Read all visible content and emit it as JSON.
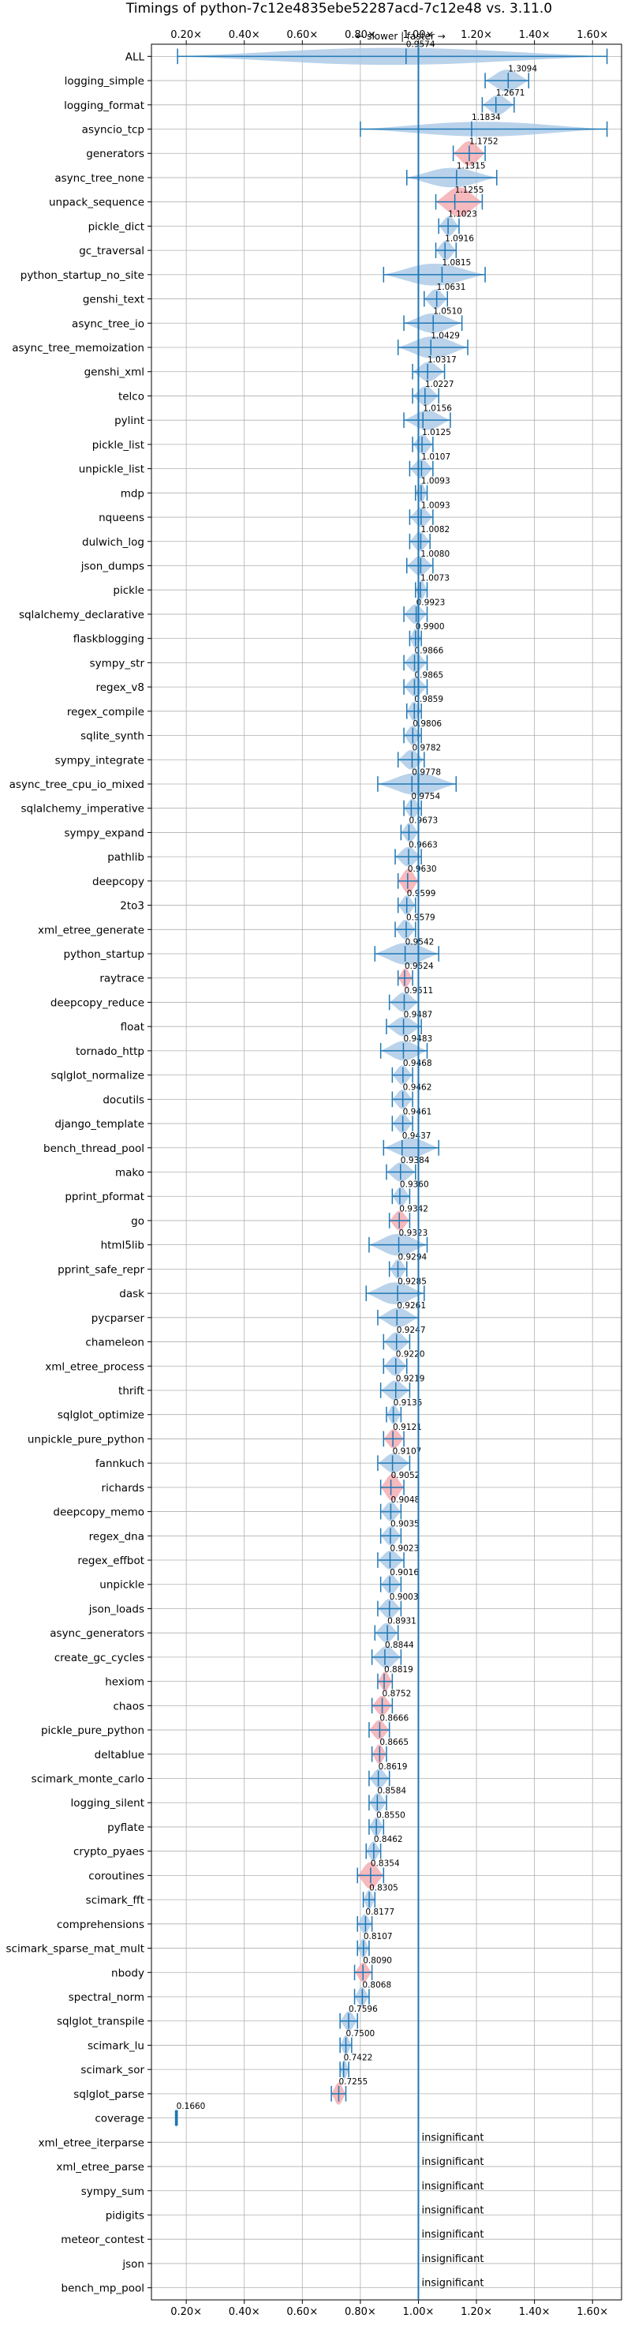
{
  "chart_data": {
    "type": "violin",
    "title": "Timings of python-7c12e4835ebe52287acd-7c12e48 vs. 3.11.0",
    "direction_label": "← slower | faster →",
    "xlim": [
      0.08,
      1.7
    ],
    "x_ticks": [
      0.2,
      0.4,
      0.6,
      0.8,
      1.0,
      1.2,
      1.4,
      1.6
    ],
    "x_tick_labels": [
      "0.20×",
      "0.40×",
      "0.60×",
      "0.80×",
      "1.00×",
      "1.20×",
      "1.40×",
      "1.60×"
    ],
    "reference_line": 1.0,
    "grid": true,
    "benchmarks": [
      {
        "name": "ALL",
        "value": 0.9574,
        "label": "0.9574",
        "min": 0.17,
        "max": 1.65,
        "width": 0.35,
        "color": "blue"
      },
      {
        "name": "logging_simple",
        "value": 1.3094,
        "label": "1.3094",
        "min": 1.23,
        "max": 1.38,
        "width": 0.45,
        "color": "blue"
      },
      {
        "name": "logging_format",
        "value": 1.2671,
        "label": "1.2671",
        "min": 1.22,
        "max": 1.33,
        "width": 0.4,
        "color": "blue"
      },
      {
        "name": "asyncio_tcp",
        "value": 1.1834,
        "label": "1.1834",
        "min": 0.8,
        "max": 1.65,
        "width": 0.3,
        "color": "blue"
      },
      {
        "name": "generators",
        "value": 1.1752,
        "label": "1.1752",
        "min": 1.12,
        "max": 1.23,
        "width": 0.5,
        "color": "red"
      },
      {
        "name": "async_tree_none",
        "value": 1.1315,
        "label": "1.1315",
        "min": 0.96,
        "max": 1.27,
        "width": 0.4,
        "color": "blue"
      },
      {
        "name": "unpack_sequence",
        "value": 1.1255,
        "label": "1.1255",
        "min": 1.06,
        "max": 1.22,
        "width": 0.6,
        "color": "red"
      },
      {
        "name": "pickle_dict",
        "value": 1.1023,
        "label": "1.1023",
        "min": 1.07,
        "max": 1.14,
        "width": 0.4,
        "color": "blue"
      },
      {
        "name": "gc_traversal",
        "value": 1.0916,
        "label": "1.0916",
        "min": 1.06,
        "max": 1.13,
        "width": 0.4,
        "color": "blue"
      },
      {
        "name": "python_startup_no_site",
        "value": 1.0815,
        "label": "1.0815",
        "min": 0.88,
        "max": 1.23,
        "width": 0.45,
        "color": "blue"
      },
      {
        "name": "genshi_text",
        "value": 1.0631,
        "label": "1.0631",
        "min": 1.02,
        "max": 1.1,
        "width": 0.4,
        "color": "blue"
      },
      {
        "name": "async_tree_io",
        "value": 1.051,
        "label": "1.0510",
        "min": 0.95,
        "max": 1.15,
        "width": 0.4,
        "color": "blue"
      },
      {
        "name": "async_tree_memoization",
        "value": 1.0429,
        "label": "1.0429",
        "min": 0.93,
        "max": 1.17,
        "width": 0.45,
        "color": "blue"
      },
      {
        "name": "genshi_xml",
        "value": 1.0317,
        "label": "1.0317",
        "min": 0.98,
        "max": 1.09,
        "width": 0.4,
        "color": "blue"
      },
      {
        "name": "telco",
        "value": 1.0227,
        "label": "1.0227",
        "min": 0.98,
        "max": 1.07,
        "width": 0.4,
        "color": "blue"
      },
      {
        "name": "pylint",
        "value": 1.0156,
        "label": "1.0156",
        "min": 0.95,
        "max": 1.11,
        "width": 0.4,
        "color": "blue"
      },
      {
        "name": "pickle_list",
        "value": 1.0125,
        "label": "1.0125",
        "min": 0.98,
        "max": 1.05,
        "width": 0.4,
        "color": "blue"
      },
      {
        "name": "unpickle_list",
        "value": 1.0107,
        "label": "1.0107",
        "min": 0.97,
        "max": 1.05,
        "width": 0.4,
        "color": "blue"
      },
      {
        "name": "mdp",
        "value": 1.0093,
        "label": "1.0093",
        "min": 0.99,
        "max": 1.03,
        "width": 0.4,
        "color": "blue"
      },
      {
        "name": "nqueens",
        "value": 1.0093,
        "label": "1.0093",
        "min": 0.97,
        "max": 1.05,
        "width": 0.4,
        "color": "blue"
      },
      {
        "name": "dulwich_log",
        "value": 1.0082,
        "label": "1.0082",
        "min": 0.97,
        "max": 1.04,
        "width": 0.4,
        "color": "blue"
      },
      {
        "name": "json_dumps",
        "value": 1.008,
        "label": "1.0080",
        "min": 0.96,
        "max": 1.05,
        "width": 0.4,
        "color": "blue"
      },
      {
        "name": "pickle",
        "value": 1.0073,
        "label": "1.0073",
        "min": 0.99,
        "max": 1.03,
        "width": 0.4,
        "color": "blue"
      },
      {
        "name": "sqlalchemy_declarative",
        "value": 0.9923,
        "label": "0.9923",
        "min": 0.95,
        "max": 1.03,
        "width": 0.4,
        "color": "blue"
      },
      {
        "name": "flaskblogging",
        "value": 0.99,
        "label": "0.9900",
        "min": 0.97,
        "max": 1.01,
        "width": 0.4,
        "color": "blue"
      },
      {
        "name": "sympy_str",
        "value": 0.9866,
        "label": "0.9866",
        "min": 0.95,
        "max": 1.03,
        "width": 0.4,
        "color": "blue"
      },
      {
        "name": "regex_v8",
        "value": 0.9865,
        "label": "0.9865",
        "min": 0.95,
        "max": 1.03,
        "width": 0.4,
        "color": "blue"
      },
      {
        "name": "regex_compile",
        "value": 0.9859,
        "label": "0.9859",
        "min": 0.96,
        "max": 1.01,
        "width": 0.4,
        "color": "blue"
      },
      {
        "name": "sqlite_synth",
        "value": 0.9806,
        "label": "0.9806",
        "min": 0.95,
        "max": 1.01,
        "width": 0.4,
        "color": "blue"
      },
      {
        "name": "sympy_integrate",
        "value": 0.9782,
        "label": "0.9782",
        "min": 0.93,
        "max": 1.02,
        "width": 0.4,
        "color": "blue"
      },
      {
        "name": "async_tree_cpu_io_mixed",
        "value": 0.9778,
        "label": "0.9778",
        "min": 0.86,
        "max": 1.13,
        "width": 0.45,
        "color": "blue"
      },
      {
        "name": "sqlalchemy_imperative",
        "value": 0.9754,
        "label": "0.9754",
        "min": 0.95,
        "max": 1.01,
        "width": 0.4,
        "color": "blue"
      },
      {
        "name": "sympy_expand",
        "value": 0.9673,
        "label": "0.9673",
        "min": 0.94,
        "max": 1.0,
        "width": 0.4,
        "color": "blue"
      },
      {
        "name": "pathlib",
        "value": 0.9663,
        "label": "0.9663",
        "min": 0.92,
        "max": 1.01,
        "width": 0.4,
        "color": "blue"
      },
      {
        "name": "deepcopy",
        "value": 0.963,
        "label": "0.9630",
        "min": 0.93,
        "max": 1.0,
        "width": 0.5,
        "color": "red"
      },
      {
        "name": "2to3",
        "value": 0.9599,
        "label": "0.9599",
        "min": 0.93,
        "max": 0.99,
        "width": 0.4,
        "color": "blue"
      },
      {
        "name": "xml_etree_generate",
        "value": 0.9579,
        "label": "0.9579",
        "min": 0.92,
        "max": 0.99,
        "width": 0.4,
        "color": "blue"
      },
      {
        "name": "python_startup",
        "value": 0.9542,
        "label": "0.9542",
        "min": 0.85,
        "max": 1.07,
        "width": 0.45,
        "color": "blue"
      },
      {
        "name": "raytrace",
        "value": 0.9524,
        "label": "0.9524",
        "min": 0.93,
        "max": 0.98,
        "width": 0.4,
        "color": "red"
      },
      {
        "name": "deepcopy_reduce",
        "value": 0.9511,
        "label": "0.9511",
        "min": 0.9,
        "max": 1.0,
        "width": 0.4,
        "color": "blue"
      },
      {
        "name": "float",
        "value": 0.9487,
        "label": "0.9487",
        "min": 0.89,
        "max": 1.01,
        "width": 0.4,
        "color": "blue"
      },
      {
        "name": "tornado_http",
        "value": 0.9483,
        "label": "0.9483",
        "min": 0.87,
        "max": 1.03,
        "width": 0.4,
        "color": "blue"
      },
      {
        "name": "sqlglot_normalize",
        "value": 0.9468,
        "label": "0.9468",
        "min": 0.91,
        "max": 0.98,
        "width": 0.4,
        "color": "blue"
      },
      {
        "name": "docutils",
        "value": 0.9462,
        "label": "0.9462",
        "min": 0.91,
        "max": 0.98,
        "width": 0.4,
        "color": "blue"
      },
      {
        "name": "django_template",
        "value": 0.9461,
        "label": "0.9461",
        "min": 0.91,
        "max": 0.98,
        "width": 0.4,
        "color": "blue"
      },
      {
        "name": "bench_thread_pool",
        "value": 0.9437,
        "label": "0.9437",
        "min": 0.88,
        "max": 1.07,
        "width": 0.4,
        "color": "blue"
      },
      {
        "name": "mako",
        "value": 0.9384,
        "label": "0.9384",
        "min": 0.89,
        "max": 0.99,
        "width": 0.4,
        "color": "blue"
      },
      {
        "name": "pprint_pformat",
        "value": 0.936,
        "label": "0.9360",
        "min": 0.91,
        "max": 0.97,
        "width": 0.4,
        "color": "blue"
      },
      {
        "name": "go",
        "value": 0.9342,
        "label": "0.9342",
        "min": 0.9,
        "max": 0.97,
        "width": 0.4,
        "color": "red"
      },
      {
        "name": "html5lib",
        "value": 0.9323,
        "label": "0.9323",
        "min": 0.83,
        "max": 1.03,
        "width": 0.45,
        "color": "blue"
      },
      {
        "name": "pprint_safe_repr",
        "value": 0.9294,
        "label": "0.9294",
        "min": 0.9,
        "max": 0.96,
        "width": 0.4,
        "color": "blue"
      },
      {
        "name": "dask",
        "value": 0.9285,
        "label": "0.9285",
        "min": 0.82,
        "max": 1.02,
        "width": 0.45,
        "color": "blue"
      },
      {
        "name": "pycparser",
        "value": 0.9261,
        "label": "0.9261",
        "min": 0.86,
        "max": 1.0,
        "width": 0.4,
        "color": "blue"
      },
      {
        "name": "chameleon",
        "value": 0.9247,
        "label": "0.9247",
        "min": 0.88,
        "max": 0.97,
        "width": 0.4,
        "color": "blue"
      },
      {
        "name": "xml_etree_process",
        "value": 0.922,
        "label": "0.9220",
        "min": 0.88,
        "max": 0.96,
        "width": 0.4,
        "color": "blue"
      },
      {
        "name": "thrift",
        "value": 0.9219,
        "label": "0.9219",
        "min": 0.87,
        "max": 0.97,
        "width": 0.4,
        "color": "blue"
      },
      {
        "name": "sqlglot_optimize",
        "value": 0.9135,
        "label": "0.9135",
        "min": 0.89,
        "max": 0.94,
        "width": 0.4,
        "color": "blue"
      },
      {
        "name": "unpickle_pure_python",
        "value": 0.9121,
        "label": "0.9121",
        "min": 0.88,
        "max": 0.95,
        "width": 0.4,
        "color": "red"
      },
      {
        "name": "fannkuch",
        "value": 0.9107,
        "label": "0.9107",
        "min": 0.86,
        "max": 0.97,
        "width": 0.4,
        "color": "blue"
      },
      {
        "name": "richards",
        "value": 0.9052,
        "label": "0.9052",
        "min": 0.87,
        "max": 0.95,
        "width": 0.55,
        "color": "red"
      },
      {
        "name": "deepcopy_memo",
        "value": 0.9048,
        "label": "0.9048",
        "min": 0.87,
        "max": 0.94,
        "width": 0.4,
        "color": "blue"
      },
      {
        "name": "regex_dna",
        "value": 0.9035,
        "label": "0.9035",
        "min": 0.87,
        "max": 0.94,
        "width": 0.4,
        "color": "blue"
      },
      {
        "name": "regex_effbot",
        "value": 0.9023,
        "label": "0.9023",
        "min": 0.86,
        "max": 0.95,
        "width": 0.4,
        "color": "blue"
      },
      {
        "name": "unpickle",
        "value": 0.9016,
        "label": "0.9016",
        "min": 0.87,
        "max": 0.94,
        "width": 0.4,
        "color": "blue"
      },
      {
        "name": "json_loads",
        "value": 0.9003,
        "label": "0.9003",
        "min": 0.86,
        "max": 0.94,
        "width": 0.4,
        "color": "blue"
      },
      {
        "name": "async_generators",
        "value": 0.8931,
        "label": "0.8931",
        "min": 0.85,
        "max": 0.93,
        "width": 0.4,
        "color": "blue"
      },
      {
        "name": "create_gc_cycles",
        "value": 0.8844,
        "label": "0.8844",
        "min": 0.84,
        "max": 0.94,
        "width": 0.45,
        "color": "blue"
      },
      {
        "name": "hexiom",
        "value": 0.8819,
        "label": "0.8819",
        "min": 0.86,
        "max": 0.91,
        "width": 0.4,
        "color": "red"
      },
      {
        "name": "chaos",
        "value": 0.8752,
        "label": "0.8752",
        "min": 0.84,
        "max": 0.91,
        "width": 0.4,
        "color": "red"
      },
      {
        "name": "pickle_pure_python",
        "value": 0.8666,
        "label": "0.8666",
        "min": 0.83,
        "max": 0.9,
        "width": 0.4,
        "color": "red"
      },
      {
        "name": "deltablue",
        "value": 0.8665,
        "label": "0.8665",
        "min": 0.84,
        "max": 0.89,
        "width": 0.4,
        "color": "red"
      },
      {
        "name": "scimark_monte_carlo",
        "value": 0.8619,
        "label": "0.8619",
        "min": 0.83,
        "max": 0.9,
        "width": 0.4,
        "color": "blue"
      },
      {
        "name": "logging_silent",
        "value": 0.8584,
        "label": "0.8584",
        "min": 0.83,
        "max": 0.89,
        "width": 0.4,
        "color": "blue"
      },
      {
        "name": "pyflate",
        "value": 0.855,
        "label": "0.8550",
        "min": 0.83,
        "max": 0.88,
        "width": 0.4,
        "color": "blue"
      },
      {
        "name": "crypto_pyaes",
        "value": 0.8462,
        "label": "0.8462",
        "min": 0.82,
        "max": 0.87,
        "width": 0.4,
        "color": "blue"
      },
      {
        "name": "coroutines",
        "value": 0.8354,
        "label": "0.8354",
        "min": 0.79,
        "max": 0.88,
        "width": 0.55,
        "color": "red"
      },
      {
        "name": "scimark_fft",
        "value": 0.8305,
        "label": "0.8305",
        "min": 0.81,
        "max": 0.85,
        "width": 0.4,
        "color": "blue"
      },
      {
        "name": "comprehensions",
        "value": 0.8177,
        "label": "0.8177",
        "min": 0.79,
        "max": 0.84,
        "width": 0.4,
        "color": "blue"
      },
      {
        "name": "scimark_sparse_mat_mult",
        "value": 0.8107,
        "label": "0.8107",
        "min": 0.79,
        "max": 0.83,
        "width": 0.4,
        "color": "blue"
      },
      {
        "name": "nbody",
        "value": 0.809,
        "label": "0.8090",
        "min": 0.78,
        "max": 0.84,
        "width": 0.4,
        "color": "red"
      },
      {
        "name": "spectral_norm",
        "value": 0.8068,
        "label": "0.8068",
        "min": 0.78,
        "max": 0.83,
        "width": 0.4,
        "color": "blue"
      },
      {
        "name": "sqlglot_transpile",
        "value": 0.7596,
        "label": "0.7596",
        "min": 0.73,
        "max": 0.79,
        "width": 0.4,
        "color": "blue"
      },
      {
        "name": "scimark_lu",
        "value": 0.75,
        "label": "0.7500",
        "min": 0.73,
        "max": 0.77,
        "width": 0.4,
        "color": "blue"
      },
      {
        "name": "scimark_sor",
        "value": 0.7422,
        "label": "0.7422",
        "min": 0.73,
        "max": 0.76,
        "width": 0.4,
        "color": "blue"
      },
      {
        "name": "sqlglot_parse",
        "value": 0.7255,
        "label": "0.7255",
        "min": 0.7,
        "max": 0.75,
        "width": 0.45,
        "color": "red"
      },
      {
        "name": "coverage",
        "value": 0.166,
        "label": "0.1660",
        "min": 0.163,
        "max": 0.169,
        "width": 0.4,
        "color": "blue"
      },
      {
        "name": "xml_etree_iterparse",
        "insignificant": true,
        "label": "insignificant"
      },
      {
        "name": "xml_etree_parse",
        "insignificant": true,
        "label": "insignificant"
      },
      {
        "name": "sympy_sum",
        "insignificant": true,
        "label": "insignificant"
      },
      {
        "name": "pidigits",
        "insignificant": true,
        "label": "insignificant"
      },
      {
        "name": "meteor_contest",
        "insignificant": true,
        "label": "insignificant"
      },
      {
        "name": "json",
        "insignificant": true,
        "label": "insignificant"
      },
      {
        "name": "bench_mp_pool",
        "insignificant": true,
        "label": "insignificant"
      }
    ],
    "colors": {
      "line": "#1f77b4",
      "violin_blue": "#a9c8e6",
      "violin_red": "#f4a7ae",
      "grid": "#b0b0b0",
      "axis": "#000000"
    }
  }
}
